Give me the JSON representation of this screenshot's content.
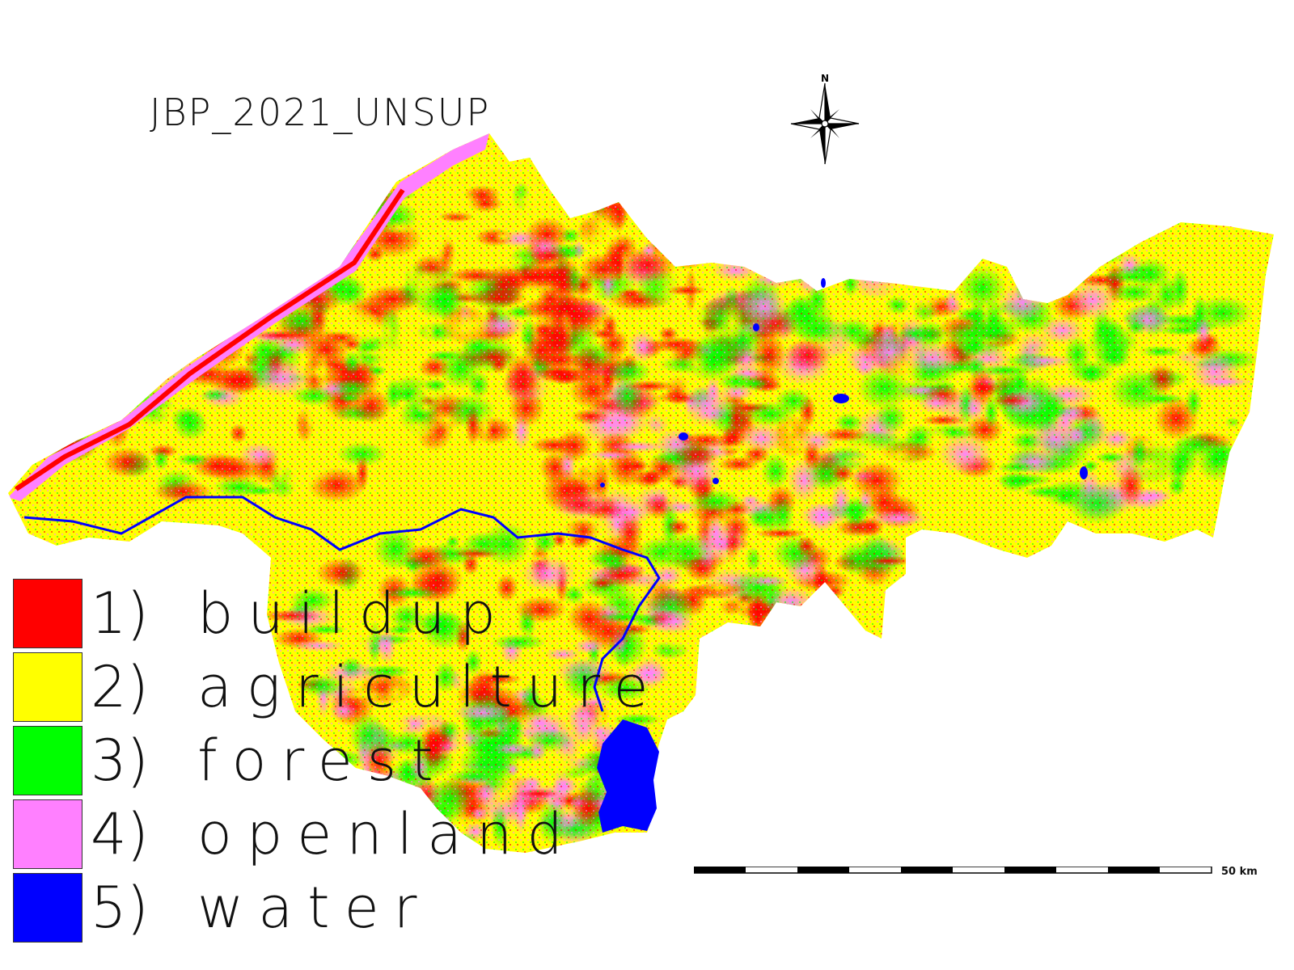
{
  "map": {
    "title": "JBP_2021_UNSUP",
    "north_label": "N",
    "scale_label": "50 km",
    "classes": [
      {
        "number": "1)",
        "name": "buildup",
        "color": "#ff0000"
      },
      {
        "number": "2)",
        "name": "agriculture",
        "color": "#ffff00"
      },
      {
        "number": "3)",
        "name": "forest",
        "color": "#00ff00"
      },
      {
        "number": "4)",
        "name": "openland",
        "color": "#ff80ff"
      },
      {
        "number": "5)",
        "name": "water",
        "color": "#0000ff"
      }
    ],
    "icons": [
      "north-arrow-icon",
      "compass-rose-icon"
    ]
  }
}
